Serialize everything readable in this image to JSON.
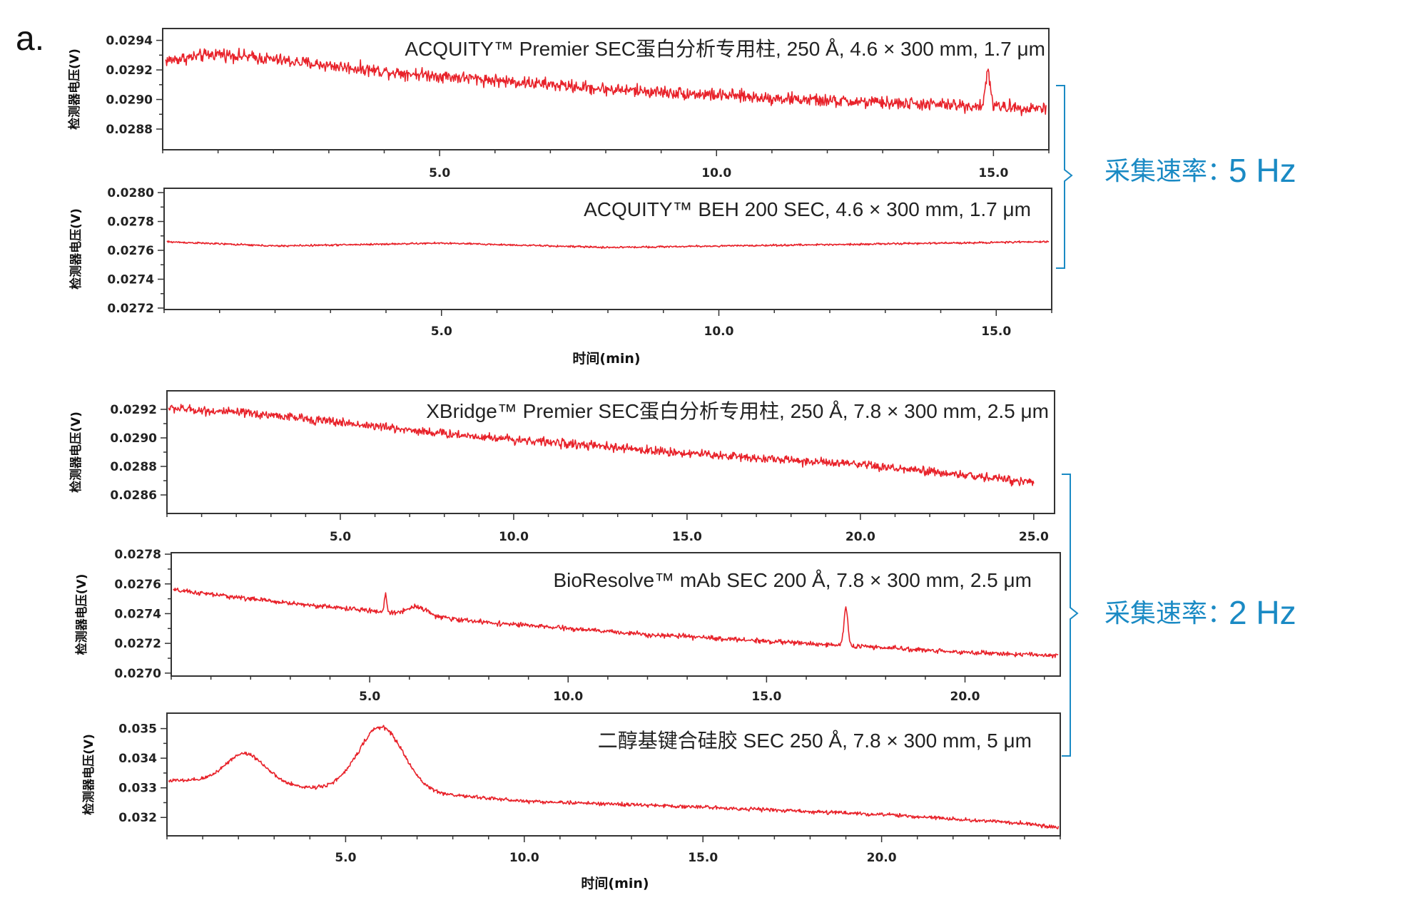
{
  "figure_label": "a.",
  "x_title": "时间(min)",
  "y_title": "检测器电压(V)",
  "colors": {
    "trace": "#e8222a",
    "annotation": "#1a8ac4",
    "frame": "#333333"
  },
  "groups": [
    {
      "label": "采集速率：",
      "rate": "5 Hz",
      "panels": [
        0,
        1
      ]
    },
    {
      "label": "采集速率：",
      "rate": "2 Hz",
      "panels": [
        2,
        3,
        4
      ]
    }
  ],
  "chart_data": [
    {
      "type": "line",
      "title": "ACQUITY™ Premier SEC蛋白分析专用柱, 250 Å, 4.6 × 300 mm, 1.7 μm",
      "ylabel": "检测器电压(V)",
      "xlim": [
        0.0,
        16.0
      ],
      "ylim": [
        0.02866,
        0.02948
      ],
      "xticks": [
        5.0,
        10.0,
        15.0
      ],
      "xtick_labels": [
        "5.0",
        "10.0",
        "15.0"
      ],
      "yticks": [
        0.0288,
        0.029,
        0.0292,
        0.0294
      ],
      "ytick_labels": [
        "0.0288",
        "0.0290",
        "0.0292",
        "0.0294"
      ],
      "baseline": {
        "x": [
          0.0,
          1.0,
          4.0,
          8.0,
          12.0,
          16.0
        ],
        "y": [
          0.02926,
          0.02931,
          0.02919,
          0.02907,
          0.02899,
          0.02894
        ]
      },
      "noise": 3e-05,
      "peaks": [
        {
          "x": 14.9,
          "height": 0.00024,
          "width": 0.04
        }
      ]
    },
    {
      "type": "line",
      "title": "ACQUITY™ BEH 200 SEC, 4.6 × 300 mm, 1.7 μm",
      "ylabel": "检测器电压(V)",
      "xlim": [
        0.0,
        16.0
      ],
      "ylim": [
        0.02719,
        0.02803
      ],
      "xticks": [
        5.0,
        10.0,
        15.0
      ],
      "xtick_labels": [
        "5.0",
        "10.0",
        "15.0"
      ],
      "yticks": [
        0.0272,
        0.0274,
        0.0276,
        0.0278,
        0.028
      ],
      "ytick_labels": [
        "0.0272",
        "0.0274",
        "0.0276",
        "0.0278",
        "0.0280"
      ],
      "baseline": {
        "x": [
          0.0,
          2.0,
          5.0,
          8.0,
          12.0,
          16.0
        ],
        "y": [
          0.02766,
          0.02763,
          0.02765,
          0.02762,
          0.02764,
          0.02766
        ]
      },
      "noise": 4.5e-06,
      "peaks": []
    },
    {
      "type": "line",
      "title": "XBridge™ Premier SEC蛋白分析专用柱, 250 Å, 7.8 × 300 mm, 2.5 μm",
      "ylabel": "检测器电压(V)",
      "xlim": [
        0.0,
        25.6
      ],
      "ylim": [
        0.02847,
        0.02933
      ],
      "xticks": [
        5.0,
        10.0,
        15.0,
        20.0,
        25.0
      ],
      "xtick_labels": [
        "5.0",
        "10.0",
        "15.0",
        "20.0",
        "25.0"
      ],
      "yticks": [
        0.0286,
        0.0288,
        0.029,
        0.0292
      ],
      "ytick_labels": [
        "0.0286",
        "0.0288",
        "0.0290",
        "0.0292"
      ],
      "baseline": {
        "x": [
          0.0,
          3.0,
          8.0,
          14.0,
          20.0,
          25.0
        ],
        "y": [
          0.02921,
          0.02916,
          0.02903,
          0.02891,
          0.02881,
          0.02869
        ]
      },
      "noise": 2.2e-05,
      "peaks": []
    },
    {
      "type": "line",
      "title": "BioResolve™ mAb SEC 200 Å, 7.8 × 300 mm, 2.5 μm",
      "ylabel": "检测器电压(V)",
      "xlim": [
        0.0,
        22.4
      ],
      "ylim": [
        0.02698,
        0.02781
      ],
      "xticks": [
        5.0,
        10.0,
        15.0,
        20.0
      ],
      "xtick_labels": [
        "5.0",
        "10.0",
        "15.0",
        "20.0"
      ],
      "yticks": [
        0.027,
        0.0272,
        0.0274,
        0.0276,
        0.0278
      ],
      "ytick_labels": [
        "0.0270",
        "0.0272",
        "0.0274",
        "0.0276",
        "0.0278"
      ],
      "baseline": {
        "x": [
          0.0,
          3.0,
          5.0,
          8.0,
          12.0,
          16.0,
          20.0,
          22.0
        ],
        "y": [
          0.02756,
          0.02747,
          0.02742,
          0.02734,
          0.02726,
          0.0272,
          0.02714,
          0.02712
        ]
      },
      "noise": 1.1e-05,
      "peaks": [
        {
          "x": 5.4,
          "height": 0.00012,
          "width": 0.03
        },
        {
          "x": 6.2,
          "height": 6e-05,
          "width": 0.25
        },
        {
          "x": 17.0,
          "height": 0.00025,
          "width": 0.05
        }
      ]
    },
    {
      "type": "line",
      "title": "二醇基键合硅胶 SEC 250 Å, 7.8 × 300 mm, 5 μm",
      "ylabel": "检测器电压(V)",
      "xlim": [
        0.0,
        25.0
      ],
      "ylim": [
        0.03138,
        0.03552
      ],
      "xticks": [
        5.0,
        10.0,
        15.0,
        20.0
      ],
      "xtick_labels": [
        "5.0",
        "10.0",
        "15.0",
        "20.0"
      ],
      "yticks": [
        0.032,
        0.033,
        0.034,
        0.035
      ],
      "ytick_labels": [
        "0.032",
        "0.033",
        "0.034",
        "0.035"
      ],
      "baseline": {
        "x": [
          0.0,
          2.0,
          4.0,
          5.5,
          7.0,
          10.0,
          15.0,
          20.0,
          24.0,
          25.0
        ],
        "y": [
          0.03325,
          0.0332,
          0.033,
          0.033,
          0.03285,
          0.03255,
          0.03235,
          0.0321,
          0.0318,
          0.03165
        ]
      },
      "noise": 4.5e-05,
      "peaks": [
        {
          "x": 2.2,
          "height": 0.00098,
          "width": 0.55
        },
        {
          "x": 6.0,
          "height": 0.0021,
          "width": 0.62
        }
      ]
    }
  ]
}
